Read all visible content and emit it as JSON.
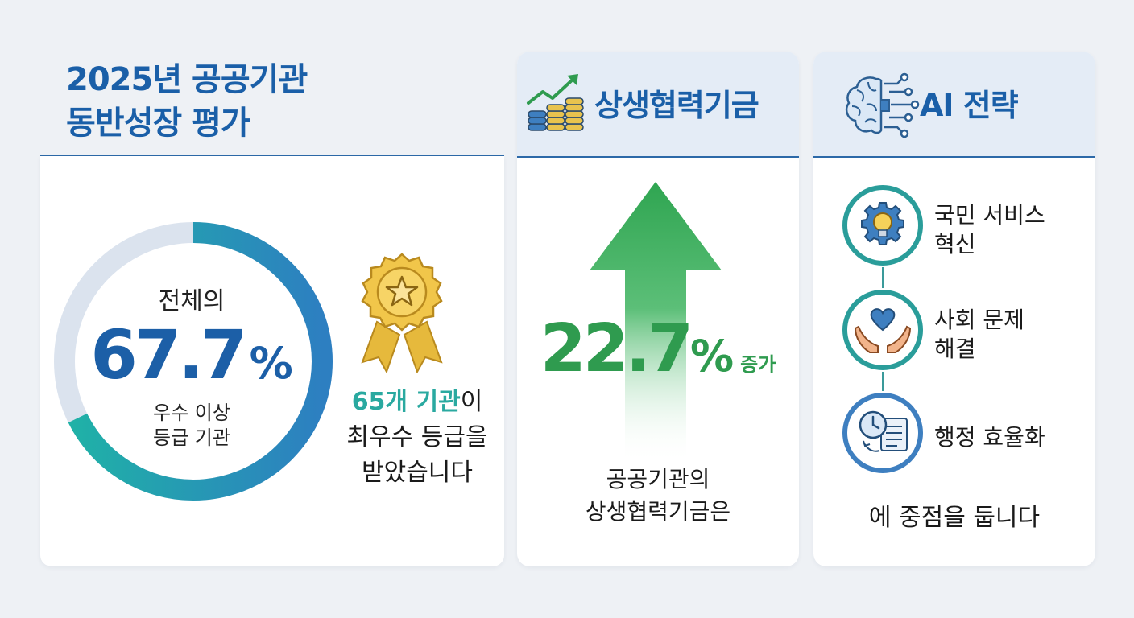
{
  "left": {
    "title_line1": "2025년 공공기관",
    "title_line2": "동반성장 평가",
    "donut": {
      "lead": "전체의",
      "percent_value": "67.7",
      "percent_sign": "%",
      "fraction": 0.677,
      "sub_line1": "우수 이상",
      "sub_line2": "등급 기관",
      "color_fill": "#1d9fb3",
      "color_track": "#dbe3ee"
    },
    "award": {
      "highlight": "65개 기관",
      "line1_rest": "이",
      "line2": "최우수 등급을",
      "line3": "받았습니다"
    },
    "icons": {
      "medal": "award-medal-icon"
    }
  },
  "middle": {
    "title": "상생협력기금",
    "growth_value": "22.7",
    "growth_sign": "%",
    "growth_word": "증가",
    "caption_line1": "공공기관의",
    "caption_line2": "상생협력기금은",
    "icons": {
      "header": "coins-growth-icon",
      "arrow": "up-arrow-icon"
    },
    "color_accent": "#2f9b4f"
  },
  "right": {
    "title": "AI 전략",
    "items": [
      {
        "line1": "국민 서비스",
        "line2": "혁신",
        "icon": "gear-bulb-icon"
      },
      {
        "line1": "사회 문제",
        "line2": "해결",
        "icon": "heart-hands-icon"
      },
      {
        "line1": "행정 효율화",
        "line2": "",
        "icon": "clock-document-icon"
      }
    ],
    "footer": "에 중점을 둡니다",
    "icons": {
      "header": "ai-brain-icon"
    }
  },
  "colors": {
    "brand_blue": "#1a5fa8",
    "teal": "#2aa9a0",
    "green": "#2f9b4f",
    "background": "#eef1f5"
  }
}
